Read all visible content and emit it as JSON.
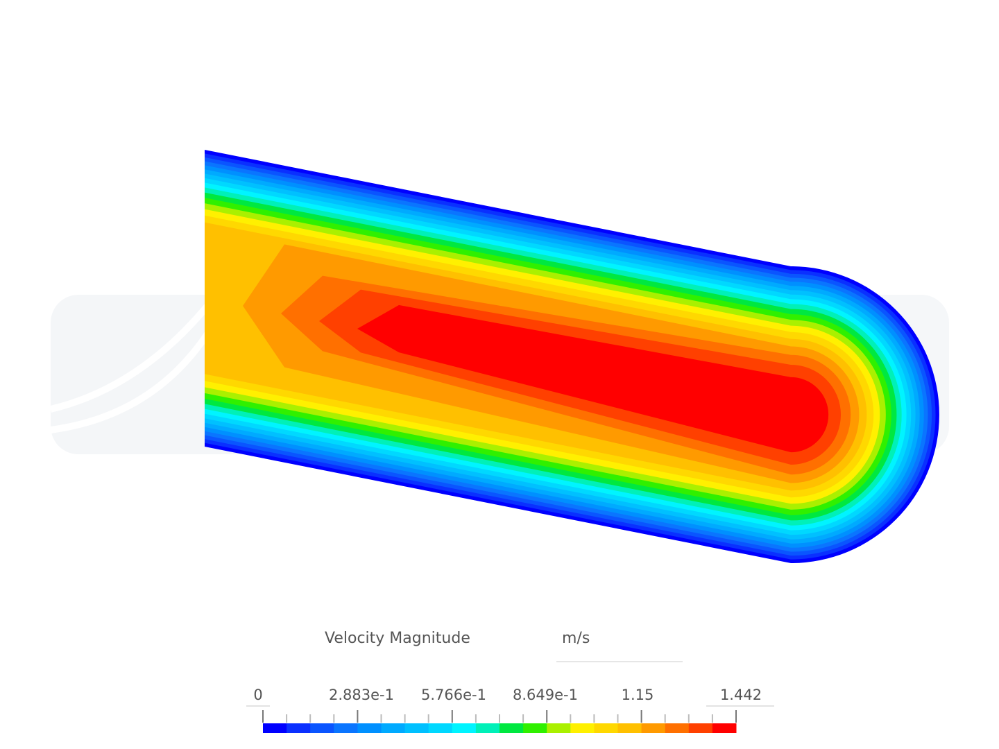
{
  "legend": {
    "title": "Velocity Magnitude",
    "unit": "m/s",
    "labels": [
      "0",
      "2.883e-1",
      "5.766e-1",
      "8.649e-1",
      "1.15",
      "1.442"
    ],
    "min": 0,
    "max": 1.442,
    "colors": [
      "#0000ff",
      "#0a30ff",
      "#0a55ff",
      "#0a75ff",
      "#0090ff",
      "#00aaff",
      "#00c0ff",
      "#00d8ff",
      "#00f4ff",
      "#00f0b8",
      "#00e840",
      "#30f000",
      "#aaf000",
      "#fff000",
      "#ffd800",
      "#ffc000",
      "#ff9a00",
      "#ff7000",
      "#ff4000",
      "#ff0000"
    ]
  }
}
